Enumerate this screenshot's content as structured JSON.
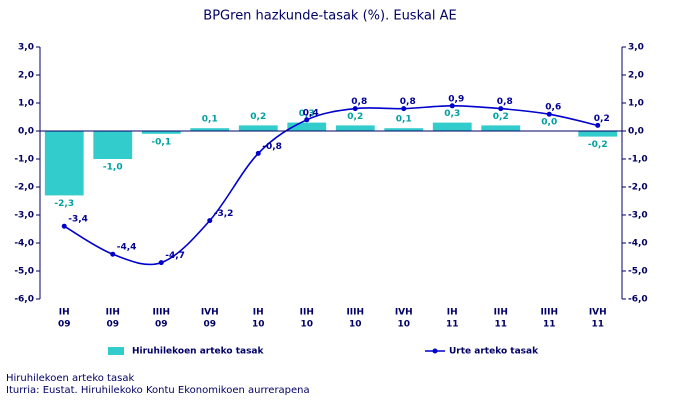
{
  "chart_data": {
    "type": "bar-line",
    "title": "BPGren hazkunde-tasak (%). Euskal AE",
    "categories": [
      [
        "IH",
        "09"
      ],
      [
        "IIH",
        "09"
      ],
      [
        "IIIH",
        "09"
      ],
      [
        "IVH",
        "09"
      ],
      [
        "IH",
        "10"
      ],
      [
        "IIH",
        "10"
      ],
      [
        "IIIH",
        "10"
      ],
      [
        "IVH",
        "10"
      ],
      [
        "IH",
        "11"
      ],
      [
        "IIH",
        "11"
      ],
      [
        "IIIH",
        "11"
      ],
      [
        "IVH",
        "11"
      ]
    ],
    "series": [
      {
        "name": "Hiruhilekoen arteko tasak",
        "type": "bar",
        "color": "#33cccc",
        "values": [
          -2.3,
          -1.0,
          -0.1,
          0.1,
          0.2,
          0.3,
          0.2,
          0.1,
          0.3,
          0.2,
          0.0,
          -0.2
        ],
        "value_labels": [
          "-2,3",
          "-1,0",
          "-0,1",
          "0,1",
          "0,2",
          "0,3",
          "0,2",
          "0,1",
          "0,3",
          "0,2",
          "0,0",
          "-0,2"
        ]
      },
      {
        "name": "Urte arteko tasak",
        "type": "line",
        "axis": "y2",
        "color": "#0000cc",
        "values": [
          -3.4,
          -4.4,
          -4.7,
          -3.2,
          -0.8,
          0.4,
          0.8,
          0.8,
          0.9,
          0.8,
          0.6,
          0.2
        ],
        "value_labels": [
          "-3,4",
          "-4,4",
          "-4,7",
          "-3,2",
          "-0,8",
          "0,4",
          "0,8",
          "0,8",
          "0,9",
          "0,8",
          "0,6",
          "0,2"
        ]
      }
    ],
    "ylim": [
      -6,
      3
    ],
    "yticks": [
      {
        "value": 3,
        "label": "3,0"
      },
      {
        "value": 2,
        "label": "2,0"
      },
      {
        "value": 1,
        "label": "1,0"
      },
      {
        "value": 0,
        "label": "0,0"
      },
      {
        "value": -1,
        "label": "-1,0"
      },
      {
        "value": -2,
        "label": "-2,0"
      },
      {
        "value": -3,
        "label": "-3,0"
      },
      {
        "value": -4,
        "label": "-4,0"
      },
      {
        "value": -5,
        "label": "-5,0"
      },
      {
        "value": -6,
        "label": "-6,0"
      }
    ],
    "y2lim": [
      -6,
      3
    ],
    "y2ticks": [
      {
        "value": 3,
        "label": "3,0"
      },
      {
        "value": 2,
        "label": "2,0"
      },
      {
        "value": 1,
        "label": "1,0"
      },
      {
        "value": 0,
        "label": "0,0"
      },
      {
        "value": -1,
        "label": "-1,0"
      },
      {
        "value": -2,
        "label": "-2,0"
      },
      {
        "value": -3,
        "label": "-3,0"
      },
      {
        "value": -4,
        "label": "-4,0"
      },
      {
        "value": -5,
        "label": "-5,0"
      },
      {
        "value": -6,
        "label": "-6,0"
      }
    ],
    "grid": false,
    "legend": "bottom",
    "note": "Hiruhilekoen arteko tasak",
    "source": "Iturria: Eustat. Hiruhilekoko Kontu Ekonomikoen aurrerapena"
  }
}
